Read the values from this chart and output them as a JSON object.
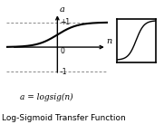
{
  "title": "Log-Sigmoid Transfer Function",
  "formula": "a = logsig(n)",
  "xlabel": "n",
  "ylabel": "a",
  "xlim": [
    -5,
    5
  ],
  "ylim": [
    -1.5,
    1.5
  ],
  "dashed_y_pos": 1.0,
  "dashed_y_neg": -1.0,
  "label_plus1": "+1",
  "label_zero": "0",
  "label_minus1": "-1",
  "curve_color": "#000000",
  "axis_color": "#000000",
  "dashed_color": "#888888",
  "bg_color": "#ffffff"
}
